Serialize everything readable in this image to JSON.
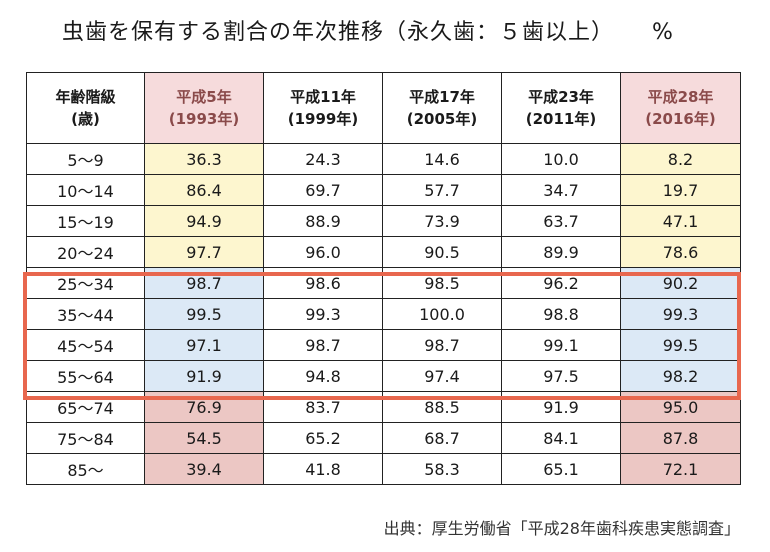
{
  "title": {
    "text": "虫歯を保有する割合の年次推移（永久歯：５歯以上）",
    "unit": "%"
  },
  "table": {
    "headers": [
      {
        "line1": "年齢階級",
        "line2": "(歳)"
      },
      {
        "line1": "平成5年",
        "line2": "(1993年)"
      },
      {
        "line1": "平成11年",
        "line2": "(1999年)"
      },
      {
        "line1": "平成17年",
        "line2": "(2005年)"
      },
      {
        "line1": "平成23年",
        "line2": "(2011年)"
      },
      {
        "line1": "平成28年",
        "line2": "(2016年)"
      }
    ],
    "rows": [
      [
        "5〜9",
        "36.3",
        "24.3",
        "14.6",
        "10.0",
        "8.2"
      ],
      [
        "10〜14",
        "86.4",
        "69.7",
        "57.7",
        "34.7",
        "19.7"
      ],
      [
        "15〜19",
        "94.9",
        "88.9",
        "73.9",
        "63.7",
        "47.1"
      ],
      [
        "20〜24",
        "97.7",
        "96.0",
        "90.5",
        "89.9",
        "78.6"
      ],
      [
        "25〜34",
        "98.7",
        "98.6",
        "98.5",
        "96.2",
        "90.2"
      ],
      [
        "35〜44",
        "99.5",
        "99.3",
        "100.0",
        "98.8",
        "99.3"
      ],
      [
        "45〜54",
        "97.1",
        "98.7",
        "98.7",
        "99.1",
        "99.5"
      ],
      [
        "55〜64",
        "91.9",
        "94.8",
        "97.4",
        "97.5",
        "98.2"
      ],
      [
        "65〜74",
        "76.9",
        "83.7",
        "88.5",
        "91.9",
        "95.0"
      ],
      [
        "75〜84",
        "54.5",
        "65.2",
        "68.7",
        "84.1",
        "87.8"
      ],
      [
        "85〜",
        "39.4",
        "41.8",
        "58.3",
        "65.1",
        "72.1"
      ]
    ]
  },
  "colors": {
    "header_highlight": "#f6dbdc",
    "young_rows": "#fdf6cf",
    "middle_rows": "#dce9f6",
    "older_rows": "#ecc7c4",
    "highlight_border": "#e8674e"
  },
  "source": "出典：厚生労働省「平成28年歯科疾患実態調査」"
}
